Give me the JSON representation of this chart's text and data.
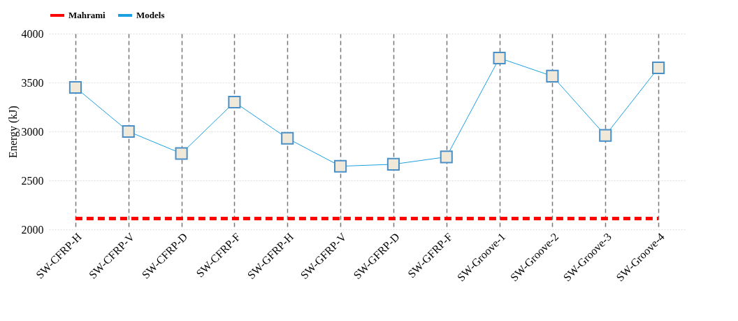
{
  "chart_data": {
    "type": "line",
    "ylabel": "Energy (kJ)",
    "categories": [
      "SW-CFRP-H",
      "SW-CFRP-V",
      "SW-CFRP-D",
      "SW-CFRP-F",
      "SW-GFRP-H",
      "SW-GFRP-V",
      "SW-GFRP-D",
      "SW-GFRP-F",
      "SW-Groove-1",
      "SW-Groove-2",
      "SW-Groove-3",
      "SW-Groove-4"
    ],
    "series": [
      {
        "name": "Mahrami",
        "color": "#ff0000",
        "line_style": "dashed",
        "marker": "none",
        "values": [
          2110,
          2110,
          2110,
          2110,
          2110,
          2110,
          2110,
          2110,
          2110,
          2110,
          2110,
          2110
        ]
      },
      {
        "name": "Models",
        "color": "#1ba1e2",
        "line_style": "solid",
        "marker": "square",
        "values": [
          3450,
          3000,
          2775,
          3300,
          2930,
          2645,
          2665,
          2740,
          3750,
          3565,
          2960,
          3650
        ]
      }
    ],
    "ylim": [
      2000,
      4000
    ],
    "yticks": [
      2000,
      2500,
      3000,
      3500,
      4000
    ],
    "grid": true,
    "legend": "top"
  }
}
